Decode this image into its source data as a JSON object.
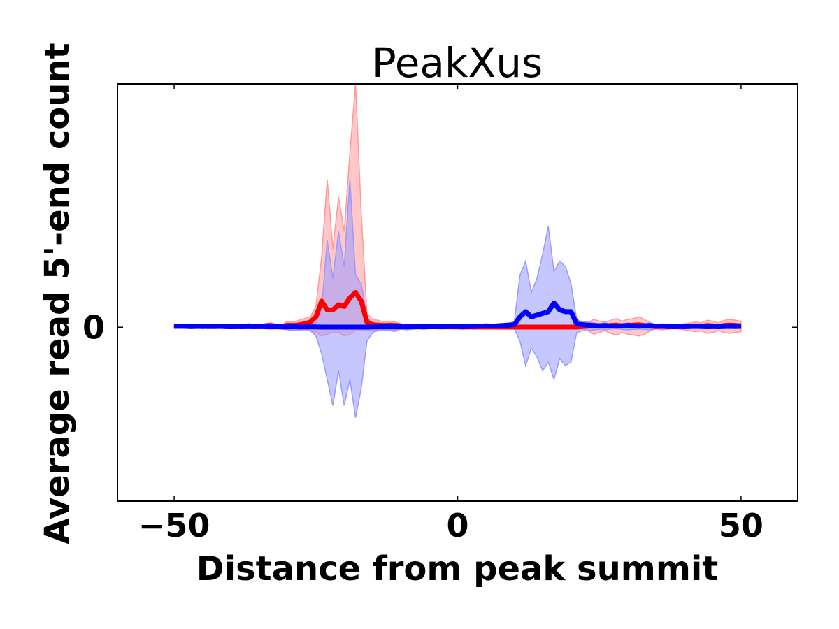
{
  "chart_data": {
    "type": "line",
    "title": "PeakXus",
    "xlabel": "Distance from peak summit",
    "ylabel": "Average read 5'-end count",
    "xlim": [
      -60,
      60
    ],
    "ylim": [
      -1.0,
      1.4
    ],
    "xticks": [
      -50,
      0,
      50
    ],
    "xtick_labels": [
      "−50",
      "0",
      "50"
    ],
    "yticks": [
      0
    ],
    "ytick_labels": [
      "0"
    ],
    "grid": false,
    "legend": "none",
    "x": [
      -50,
      -49,
      -48,
      -47,
      -46,
      -45,
      -44,
      -43,
      -42,
      -41,
      -40,
      -39,
      -38,
      -37,
      -36,
      -35,
      -34,
      -33,
      -32,
      -31,
      -30,
      -29,
      -28,
      -27,
      -26,
      -25,
      -24,
      -23,
      -22,
      -21,
      -20,
      -19,
      -18,
      -17,
      -16,
      -15,
      -14,
      -13,
      -12,
      -11,
      -10,
      -9,
      -8,
      -7,
      -6,
      -5,
      -4,
      -3,
      -2,
      -1,
      0,
      1,
      2,
      3,
      4,
      5,
      6,
      7,
      8,
      9,
      10,
      11,
      12,
      13,
      14,
      15,
      16,
      17,
      18,
      19,
      20,
      21,
      22,
      23,
      24,
      25,
      26,
      27,
      28,
      29,
      30,
      31,
      32,
      33,
      34,
      35,
      36,
      37,
      38,
      39,
      40,
      41,
      42,
      43,
      44,
      45,
      46,
      47,
      48,
      49,
      50
    ],
    "series": [
      {
        "color": "#ff0000",
        "band_color": "#ff9999",
        "values": [
          0.005,
          0.006,
          0.005,
          0.004,
          0.005,
          0.006,
          0.004,
          0.005,
          0.006,
          0.004,
          0.003,
          0.004,
          0.005,
          0.008,
          0.006,
          0.004,
          0.008,
          0.01,
          0.006,
          0.004,
          0.012,
          0.01,
          0.014,
          0.02,
          0.03,
          0.06,
          0.15,
          0.1,
          0.1,
          0.13,
          0.12,
          0.17,
          0.2,
          0.15,
          0.03,
          0.015,
          0.012,
          0.01,
          0.012,
          0.01,
          0.008,
          0.005,
          0.006,
          0.004,
          0.005,
          0.004,
          0.003,
          0.002,
          0.003,
          0.002,
          0.002,
          0.001,
          0.002,
          0.001,
          0.002,
          0.001,
          0.002,
          0.001,
          0.001,
          0.001,
          0.001,
          0.001,
          0.001,
          0.001,
          0.001,
          0.001,
          0.001,
          0.001,
          0.001,
          0.001,
          0.001,
          0.001,
          0.004,
          0.006,
          0.01,
          0.008,
          0.006,
          0.01,
          0.012,
          0.008,
          0.01,
          0.012,
          0.014,
          0.01,
          0.006,
          0.004,
          0.005,
          0.004,
          0.003,
          0.004,
          0.005,
          0.006,
          0.008,
          0.006,
          0.01,
          0.008,
          0.006,
          0.01,
          0.012,
          0.01,
          0.008
        ],
        "lower": [
          0.0,
          0.0,
          0.0,
          -0.003,
          -0.002,
          0.0,
          -0.003,
          -0.002,
          0.0,
          -0.003,
          -0.004,
          -0.003,
          -0.002,
          -0.004,
          -0.006,
          -0.007,
          -0.003,
          -0.002,
          -0.008,
          -0.01,
          -0.015,
          -0.02,
          -0.02,
          -0.015,
          -0.02,
          -0.03,
          -0.05,
          -0.04,
          -0.03,
          -0.03,
          -0.05,
          -0.04,
          -0.02,
          -0.02,
          -0.02,
          -0.015,
          -0.02,
          -0.015,
          -0.02,
          -0.025,
          -0.01,
          -0.005,
          -0.004,
          -0.003,
          -0.004,
          -0.003,
          -0.003,
          -0.004,
          -0.003,
          -0.002,
          -0.004,
          -0.003,
          -0.003,
          -0.002,
          -0.003,
          -0.002,
          -0.002,
          -0.002,
          -0.003,
          -0.002,
          -0.002,
          -0.002,
          -0.002,
          -0.002,
          -0.002,
          -0.002,
          -0.002,
          -0.002,
          -0.002,
          -0.002,
          -0.002,
          -0.002,
          -0.01,
          -0.02,
          -0.04,
          -0.03,
          -0.02,
          -0.035,
          -0.045,
          -0.03,
          -0.04,
          -0.045,
          -0.05,
          -0.04,
          -0.02,
          -0.01,
          -0.015,
          -0.012,
          -0.008,
          -0.01,
          -0.015,
          -0.02,
          -0.025,
          -0.02,
          -0.035,
          -0.03,
          -0.02,
          -0.03,
          -0.035,
          -0.03,
          -0.025
        ],
        "upper": [
          0.01,
          0.012,
          0.01,
          0.008,
          0.01,
          0.012,
          0.008,
          0.01,
          0.012,
          0.008,
          0.006,
          0.008,
          0.01,
          0.02,
          0.016,
          0.01,
          0.02,
          0.025,
          0.018,
          0.012,
          0.035,
          0.03,
          0.04,
          0.05,
          0.06,
          0.12,
          0.4,
          0.85,
          0.45,
          0.75,
          0.55,
          1.0,
          1.4,
          0.65,
          0.08,
          0.045,
          0.04,
          0.03,
          0.035,
          0.03,
          0.02,
          0.015,
          0.016,
          0.01,
          0.015,
          0.012,
          0.008,
          0.006,
          0.008,
          0.006,
          0.005,
          0.004,
          0.005,
          0.003,
          0.004,
          0.003,
          0.005,
          0.004,
          0.003,
          0.004,
          0.003,
          0.003,
          0.003,
          0.003,
          0.003,
          0.003,
          0.003,
          0.003,
          0.003,
          0.003,
          0.003,
          0.003,
          0.015,
          0.025,
          0.045,
          0.035,
          0.03,
          0.04,
          0.05,
          0.035,
          0.045,
          0.05,
          0.06,
          0.045,
          0.025,
          0.015,
          0.02,
          0.015,
          0.012,
          0.015,
          0.02,
          0.025,
          0.03,
          0.025,
          0.04,
          0.035,
          0.025,
          0.04,
          0.045,
          0.04,
          0.035
        ]
      },
      {
        "color": "#0000ff",
        "band_color": "#9999ff",
        "values": [
          0.005,
          0.006,
          0.005,
          0.004,
          0.005,
          0.004,
          0.005,
          0.004,
          0.005,
          0.004,
          0.003,
          0.004,
          0.003,
          0.004,
          0.003,
          0.004,
          0.003,
          0.002,
          0.003,
          0.002,
          0.002,
          0.003,
          0.002,
          0.002,
          0.002,
          0.002,
          0.001,
          0.001,
          0.001,
          0.001,
          0.001,
          0.001,
          0.001,
          0.001,
          0.001,
          0.002,
          0.002,
          0.003,
          0.002,
          0.003,
          0.002,
          0.003,
          0.002,
          0.003,
          0.002,
          0.003,
          0.003,
          0.004,
          0.003,
          0.004,
          0.004,
          0.003,
          0.004,
          0.005,
          0.006,
          0.008,
          0.006,
          0.008,
          0.01,
          0.012,
          0.015,
          0.06,
          0.09,
          0.06,
          0.07,
          0.08,
          0.09,
          0.14,
          0.1,
          0.09,
          0.09,
          0.02,
          0.015,
          0.012,
          0.01,
          0.008,
          0.01,
          0.008,
          0.006,
          0.008,
          0.01,
          0.008,
          0.006,
          0.008,
          0.01,
          0.006,
          0.005,
          0.004,
          0.003,
          0.004,
          0.003,
          0.004,
          0.005,
          0.004,
          0.003,
          0.004,
          0.003,
          0.004,
          0.005,
          0.004,
          0.005
        ],
        "lower": [
          0.0,
          0.0,
          0.0,
          0.0,
          0.0,
          -0.002,
          0.0,
          -0.002,
          0.0,
          -0.002,
          -0.002,
          -0.003,
          -0.004,
          -0.002,
          -0.004,
          -0.002,
          -0.003,
          -0.005,
          -0.004,
          -0.008,
          -0.012,
          -0.02,
          -0.015,
          -0.01,
          -0.02,
          -0.05,
          -0.15,
          -0.3,
          -0.45,
          -0.25,
          -0.45,
          -0.3,
          -0.52,
          -0.35,
          -0.08,
          -0.03,
          -0.02,
          -0.015,
          -0.02,
          -0.015,
          -0.01,
          -0.015,
          -0.01,
          -0.008,
          -0.01,
          -0.006,
          -0.005,
          -0.004,
          -0.005,
          -0.004,
          -0.003,
          -0.004,
          -0.003,
          -0.002,
          -0.003,
          -0.002,
          -0.003,
          -0.002,
          -0.002,
          -0.003,
          -0.008,
          -0.08,
          -0.22,
          -0.12,
          -0.17,
          -0.25,
          -0.2,
          -0.3,
          -0.18,
          -0.22,
          -0.2,
          -0.03,
          -0.02,
          -0.02,
          -0.015,
          -0.012,
          -0.015,
          -0.01,
          -0.008,
          -0.012,
          -0.015,
          -0.012,
          -0.01,
          -0.012,
          -0.015,
          -0.008,
          -0.006,
          -0.005,
          -0.004,
          -0.005,
          -0.004,
          -0.005,
          -0.006,
          -0.005,
          -0.004,
          -0.005,
          -0.004,
          -0.005,
          -0.006,
          -0.005,
          -0.006
        ],
        "upper": [
          0.01,
          0.012,
          0.01,
          0.008,
          0.01,
          0.008,
          0.01,
          0.008,
          0.01,
          0.008,
          0.006,
          0.008,
          0.006,
          0.008,
          0.006,
          0.008,
          0.006,
          0.005,
          0.006,
          0.005,
          0.006,
          0.008,
          0.007,
          0.006,
          0.008,
          0.03,
          0.1,
          0.5,
          0.28,
          0.55,
          0.35,
          0.85,
          0.3,
          0.25,
          0.06,
          0.02,
          0.015,
          0.012,
          0.015,
          0.012,
          0.01,
          0.012,
          0.01,
          0.008,
          0.01,
          0.008,
          0.008,
          0.008,
          0.008,
          0.008,
          0.007,
          0.008,
          0.008,
          0.01,
          0.012,
          0.015,
          0.012,
          0.015,
          0.02,
          0.025,
          0.03,
          0.3,
          0.38,
          0.2,
          0.28,
          0.42,
          0.58,
          0.32,
          0.38,
          0.35,
          0.25,
          0.045,
          0.03,
          0.03,
          0.025,
          0.02,
          0.025,
          0.018,
          0.015,
          0.02,
          0.025,
          0.02,
          0.015,
          0.02,
          0.025,
          0.015,
          0.012,
          0.01,
          0.008,
          0.01,
          0.008,
          0.01,
          0.012,
          0.01,
          0.008,
          0.01,
          0.008,
          0.01,
          0.012,
          0.01,
          0.012
        ]
      }
    ]
  }
}
